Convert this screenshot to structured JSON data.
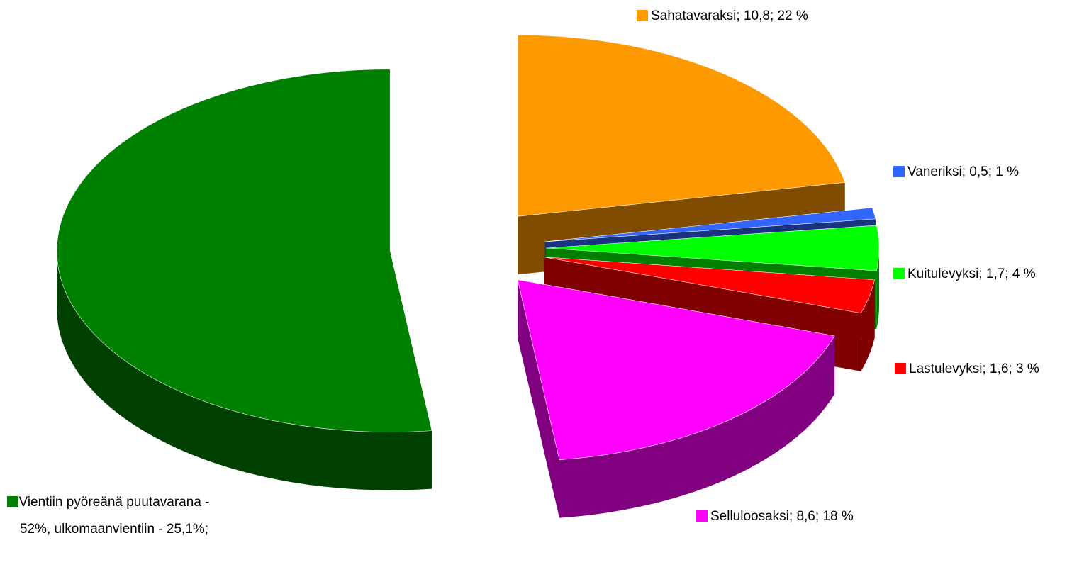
{
  "chart_data": {
    "type": "pie3d",
    "categories": [
      "Sahatavaraksi; 10,8; 22 %",
      "Vaneriksi; 0,5; 1 %",
      "Kuitulevyksi; 1,7; 4 %",
      "Lastulevyksi; 1,6; 3 %",
      "Selluloosaksi; 8,6; 18 %",
      "Vientiin pyöreänä puutavarana - 52%, ulkomaanvientiin - 25,1%;"
    ],
    "values": [
      22,
      1,
      4,
      3,
      18,
      52
    ],
    "colors": [
      "#ff9900",
      "#3366ff",
      "#00ff00",
      "#ff0000",
      "#ff00ff",
      "#008000"
    ]
  }
}
